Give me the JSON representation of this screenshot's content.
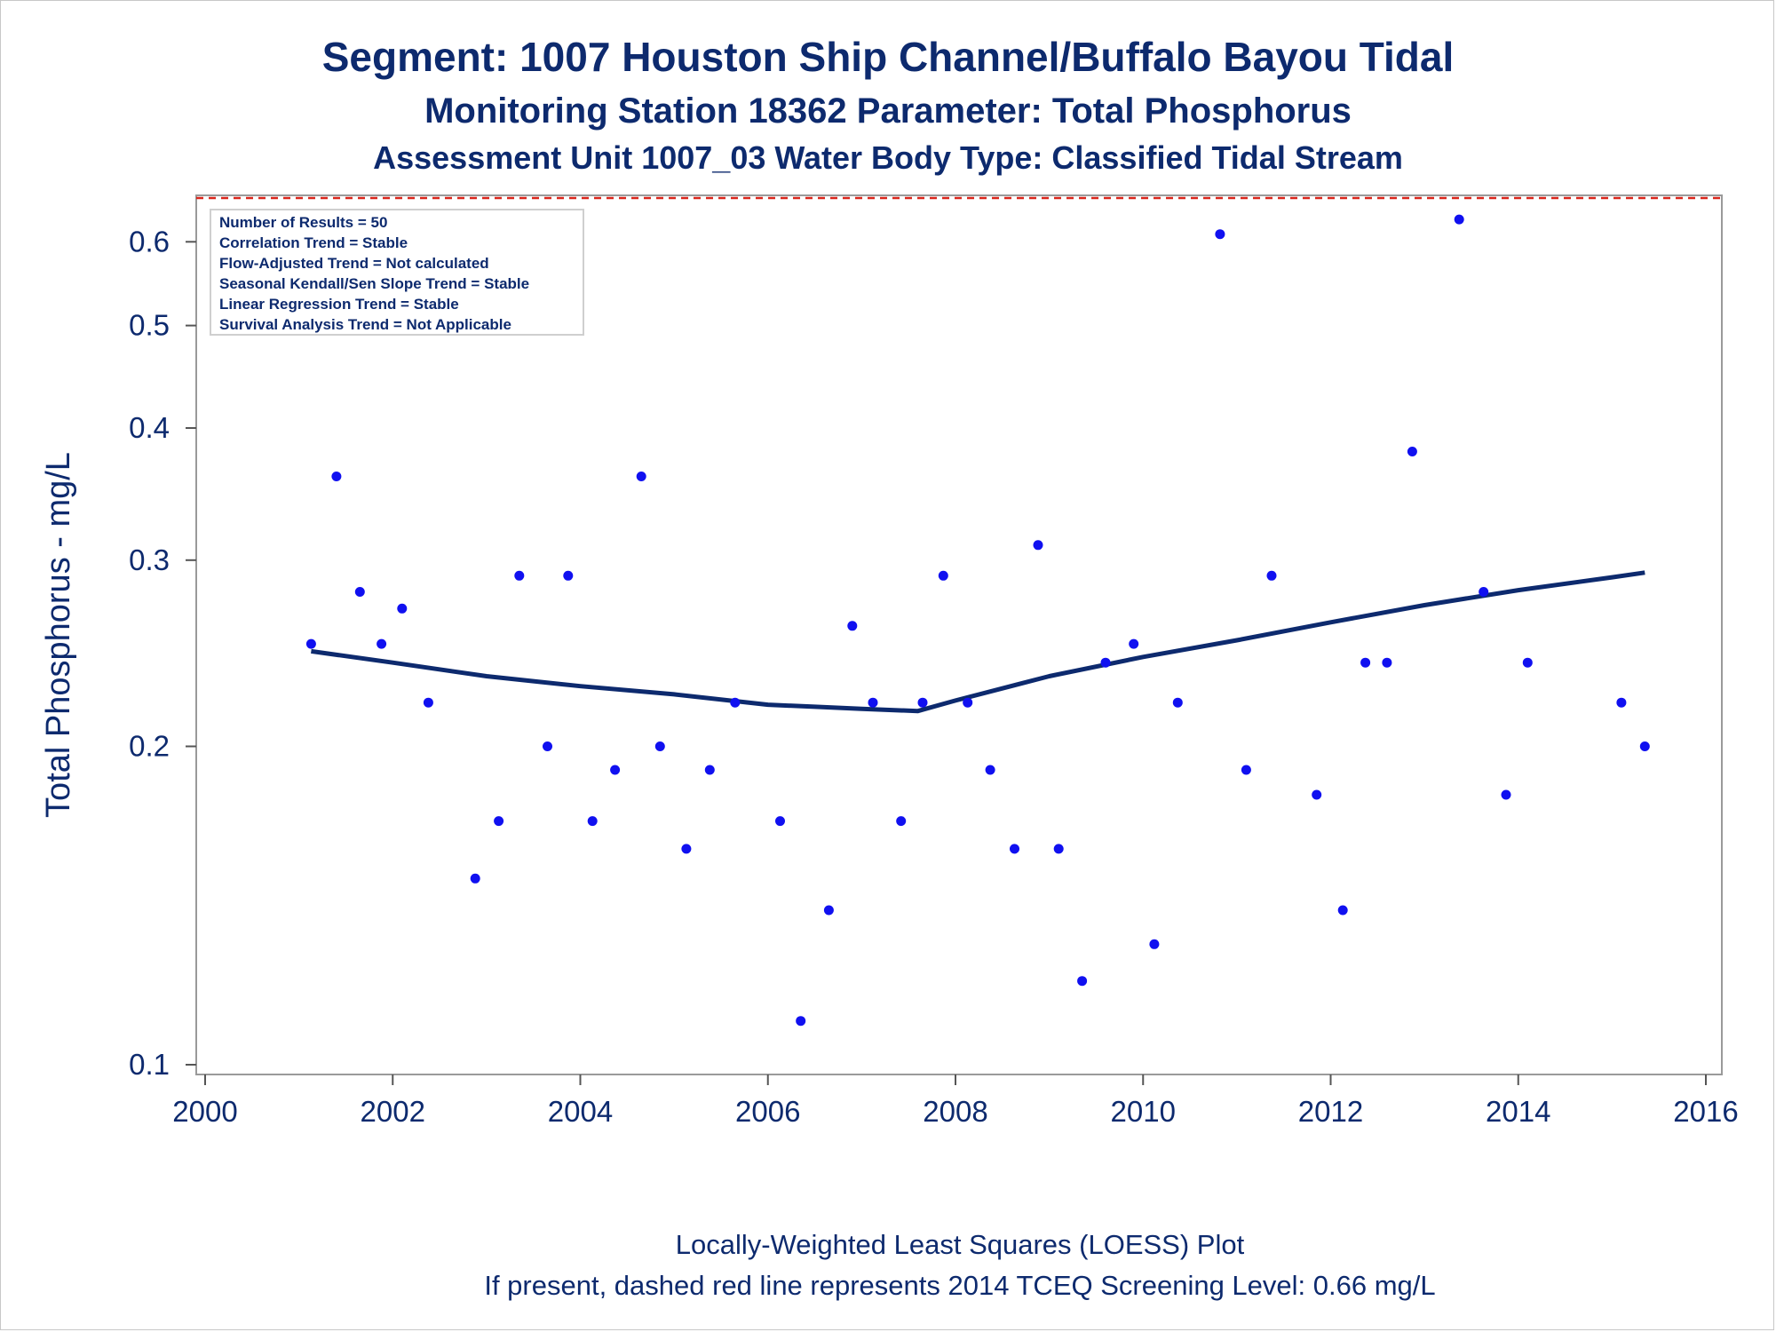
{
  "chart_data": {
    "type": "scatter",
    "title": "Segment: 1007  Houston Ship Channel/Buffalo Bayou Tidal",
    "subtitle": "Monitoring Station 18362 Parameter: Total Phosphorus",
    "subtitle2": "Assessment Unit 1007_03   Water Body Type: Classified Tidal Stream",
    "ylabel": "Total Phosphorus - mg/L",
    "xlim": [
      2000,
      2016
    ],
    "ylim": [
      0.1,
      0.66
    ],
    "yscale": "log",
    "x_ticks": [
      "2000",
      "2002",
      "2004",
      "2006",
      "2008",
      "2010",
      "2012",
      "2014",
      "2016"
    ],
    "y_ticks": [
      "0.1",
      "0.2",
      "0.3",
      "0.4",
      "0.5",
      "0.6"
    ],
    "screening_level": 0.66,
    "legend": [
      "Number of Results = 50",
      "Correlation Trend = Stable",
      "Flow-Adjusted Trend = Not calculated",
      "Seasonal Kendall/Sen Slope Trend = Stable",
      "Linear Regression Trend = Stable",
      "Survival Analysis Trend = Not Applicable"
    ],
    "footnote1": "Locally-Weighted Least Squares (LOESS) Plot",
    "footnote2": "If present, dashed red line represents 2014 TCEQ Screening Level: 0.66 mg/L",
    "points": [
      {
        "x": 2001.13,
        "y": 0.25
      },
      {
        "x": 2001.4,
        "y": 0.36
      },
      {
        "x": 2001.65,
        "y": 0.28
      },
      {
        "x": 2001.88,
        "y": 0.25
      },
      {
        "x": 2002.1,
        "y": 0.27
      },
      {
        "x": 2002.38,
        "y": 0.22
      },
      {
        "x": 2002.88,
        "y": 0.15
      },
      {
        "x": 2003.13,
        "y": 0.17
      },
      {
        "x": 2003.35,
        "y": 0.29
      },
      {
        "x": 2003.65,
        "y": 0.2
      },
      {
        "x": 2003.87,
        "y": 0.29
      },
      {
        "x": 2004.13,
        "y": 0.17
      },
      {
        "x": 2004.37,
        "y": 0.19
      },
      {
        "x": 2004.65,
        "y": 0.36
      },
      {
        "x": 2004.85,
        "y": 0.2
      },
      {
        "x": 2005.13,
        "y": 0.16
      },
      {
        "x": 2005.38,
        "y": 0.19
      },
      {
        "x": 2005.65,
        "y": 0.22
      },
      {
        "x": 2006.13,
        "y": 0.17
      },
      {
        "x": 2006.35,
        "y": 0.11
      },
      {
        "x": 2006.65,
        "y": 0.14
      },
      {
        "x": 2006.9,
        "y": 0.26
      },
      {
        "x": 2007.12,
        "y": 0.22
      },
      {
        "x": 2007.42,
        "y": 0.17
      },
      {
        "x": 2007.65,
        "y": 0.22
      },
      {
        "x": 2007.87,
        "y": 0.29
      },
      {
        "x": 2008.13,
        "y": 0.22
      },
      {
        "x": 2008.37,
        "y": 0.19
      },
      {
        "x": 2008.63,
        "y": 0.16
      },
      {
        "x": 2008.88,
        "y": 0.31
      },
      {
        "x": 2009.1,
        "y": 0.16
      },
      {
        "x": 2009.35,
        "y": 0.12
      },
      {
        "x": 2009.6,
        "y": 0.24
      },
      {
        "x": 2009.9,
        "y": 0.25
      },
      {
        "x": 2010.12,
        "y": 0.13
      },
      {
        "x": 2010.37,
        "y": 0.22
      },
      {
        "x": 2010.82,
        "y": 0.61
      },
      {
        "x": 2011.1,
        "y": 0.19
      },
      {
        "x": 2011.37,
        "y": 0.29
      },
      {
        "x": 2011.85,
        "y": 0.18
      },
      {
        "x": 2012.13,
        "y": 0.14
      },
      {
        "x": 2012.37,
        "y": 0.24
      },
      {
        "x": 2012.6,
        "y": 0.24
      },
      {
        "x": 2012.87,
        "y": 0.38
      },
      {
        "x": 2013.37,
        "y": 0.63
      },
      {
        "x": 2013.63,
        "y": 0.28
      },
      {
        "x": 2013.87,
        "y": 0.18
      },
      {
        "x": 2014.1,
        "y": 0.24
      },
      {
        "x": 2015.1,
        "y": 0.22
      },
      {
        "x": 2015.35,
        "y": 0.2
      }
    ],
    "loess": [
      {
        "x": 2001.13,
        "y": 0.246
      },
      {
        "x": 2002.0,
        "y": 0.24
      },
      {
        "x": 2003.0,
        "y": 0.233
      },
      {
        "x": 2004.0,
        "y": 0.228
      },
      {
        "x": 2005.0,
        "y": 0.224
      },
      {
        "x": 2006.0,
        "y": 0.219
      },
      {
        "x": 2006.5,
        "y": 0.218
      },
      {
        "x": 2007.0,
        "y": 0.217
      },
      {
        "x": 2007.6,
        "y": 0.216
      },
      {
        "x": 2008.0,
        "y": 0.221
      },
      {
        "x": 2009.0,
        "y": 0.233
      },
      {
        "x": 2010.0,
        "y": 0.243
      },
      {
        "x": 2011.0,
        "y": 0.252
      },
      {
        "x": 2012.0,
        "y": 0.262
      },
      {
        "x": 2013.0,
        "y": 0.272
      },
      {
        "x": 2014.0,
        "y": 0.281
      },
      {
        "x": 2015.0,
        "y": 0.289
      },
      {
        "x": 2015.35,
        "y": 0.292
      }
    ]
  }
}
